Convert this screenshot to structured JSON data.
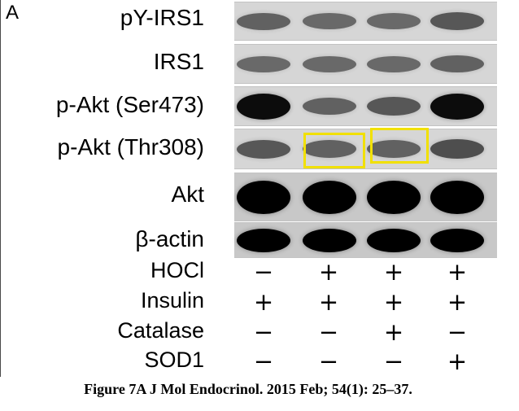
{
  "panel_letter": "A",
  "blots": [
    {
      "label": "pY-IRS1",
      "bands": [
        0.55,
        0.5,
        0.5,
        0.6
      ]
    },
    {
      "label": "IRS1",
      "bands": [
        0.5,
        0.5,
        0.5,
        0.55
      ]
    },
    {
      "label": "p-Akt (Ser473)",
      "bands": [
        0.95,
        0.55,
        0.6,
        0.95
      ]
    },
    {
      "label": "p-Akt (Thr308)",
      "bands": [
        0.6,
        0.55,
        0.55,
        0.65
      ]
    },
    {
      "label": "Akt",
      "bands": [
        1.0,
        1.0,
        1.0,
        1.0
      ]
    },
    {
      "label": "β-actin",
      "bands": [
        1.0,
        1.0,
        1.0,
        1.0
      ]
    }
  ],
  "highlighted_lanes": {
    "blot": "p-Akt (Thr308)",
    "lanes": [
      2,
      3
    ],
    "color": "#f1e000"
  },
  "conditions": [
    {
      "label": "HOCl",
      "signs": [
        "−",
        "+",
        "+",
        "+"
      ]
    },
    {
      "label": "Insulin",
      "signs": [
        "+",
        "+",
        "+",
        "+"
      ]
    },
    {
      "label": "Catalase",
      "signs": [
        "−",
        "−",
        "+",
        "−"
      ]
    },
    {
      "label": "SOD1",
      "signs": [
        "−",
        "−",
        "−",
        "+"
      ]
    }
  ],
  "caption": "Figure 7A J Mol Endocrinol. 2015 Feb; 54(1): 25–37."
}
